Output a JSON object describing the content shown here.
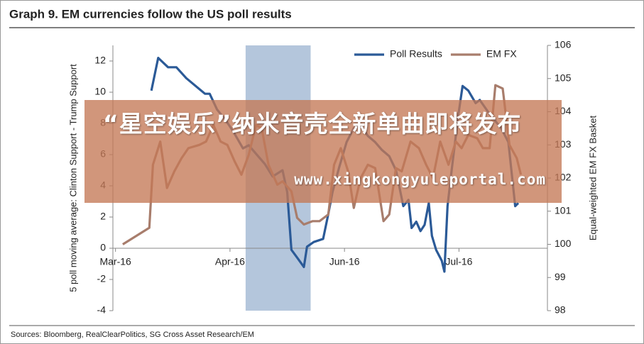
{
  "chart_data": {
    "type": "line",
    "title": "Graph 9. EM currencies follow the US poll results",
    "ylabel": "5 poll moving average: Clinton Support - Trump Support",
    "y2label": "Equal-weighted EM FX Basket",
    "source": "Sources: Bloomberg, RealClearPolitics,  SG Cross Asset Research/EM",
    "xlim": [
      -0.5,
      83
    ],
    "xticks": [
      {
        "value": 0,
        "label": "Mar-16"
      },
      {
        "value": 22,
        "label": "Apr-16"
      },
      {
        "value": 44,
        "label": "Jun-16"
      },
      {
        "value": 66,
        "label": "Jul-16"
      }
    ],
    "ylim": [
      -4,
      13
    ],
    "yticks": [
      -4,
      -2,
      0,
      2,
      4,
      6,
      8,
      10,
      12
    ],
    "y2lim": [
      98,
      106
    ],
    "y2ticks": [
      98,
      99,
      100,
      101,
      102,
      103,
      104,
      105,
      106
    ],
    "shaded_range": [
      25,
      37.5
    ],
    "shade_color": "#b4c6dc",
    "legend": "top-right",
    "series": [
      {
        "name": "Poll Results",
        "color": "#2b5a97",
        "axis": "y",
        "x": [
          6.9,
          8.2,
          10.1,
          11.7,
          13.6,
          17.2,
          18.1,
          19.5,
          21.2,
          22.6,
          24.5,
          25.6,
          27.4,
          28.7,
          30.2,
          32.1,
          33.0,
          33.8,
          34.9,
          36.2,
          36.8,
          38.1,
          39.9,
          40.9,
          41.7,
          43.0,
          44.4,
          45.8,
          47.1,
          48.5,
          49.9,
          51.2,
          52.6,
          53.9,
          55.3,
          56.3,
          56.9,
          57.8,
          58.6,
          59.4,
          60.2,
          60.8,
          61.6,
          62.7,
          63.2,
          63.8,
          64.6,
          65.9,
          66.7,
          67.8,
          69.2,
          70.0,
          71.9,
          74.1,
          75.5,
          76.8,
          77.4
        ],
        "values": [
          10.1,
          12.2,
          11.6,
          11.6,
          10.9,
          9.9,
          9.9,
          8.9,
          8.2,
          7.5,
          6.4,
          6.6,
          5.9,
          5.4,
          4.6,
          5.0,
          3.6,
          -0.1,
          -0.6,
          -1.2,
          0.1,
          0.4,
          0.6,
          2.2,
          3.6,
          5.2,
          6.8,
          7.7,
          7.9,
          7.2,
          6.8,
          6.3,
          5.9,
          5.0,
          2.7,
          3.1,
          1.3,
          1.7,
          1.1,
          1.5,
          2.9,
          0.8,
          -0.1,
          -0.8,
          -1.5,
          2.7,
          5.0,
          8.6,
          10.4,
          10.1,
          9.3,
          9.5,
          8.6,
          7.7,
          6.8,
          2.7,
          2.9
        ]
      },
      {
        "name": "EM FX",
        "color": "#a87d6c",
        "axis": "y2",
        "x": [
          1.4,
          6.5,
          7.2,
          8.6,
          9.9,
          11.3,
          12.7,
          14.0,
          16.1,
          17.4,
          18.8,
          20.2,
          21.5,
          22.9,
          24.2,
          25.6,
          27.0,
          28.1,
          29.4,
          31.1,
          32.1,
          33.8,
          34.9,
          36.2,
          37.9,
          39.2,
          40.9,
          42.0,
          43.3,
          44.7,
          45.8,
          47.1,
          48.5,
          49.9,
          51.5,
          52.6,
          53.9,
          55.0,
          56.7,
          58.3,
          59.7,
          61.0,
          62.4,
          64.0,
          65.4,
          66.5,
          67.8,
          69.5,
          70.6,
          71.9,
          73.0,
          74.4,
          75.7,
          77.1,
          77.9
        ],
        "values": [
          100.0,
          100.5,
          102.4,
          103.1,
          101.7,
          102.2,
          102.6,
          102.9,
          103.0,
          103.1,
          103.6,
          103.1,
          103.0,
          102.5,
          102.1,
          102.7,
          103.6,
          103.5,
          102.4,
          101.8,
          101.9,
          101.6,
          100.8,
          100.6,
          100.7,
          100.7,
          100.9,
          102.4,
          102.9,
          102.2,
          101.1,
          102.0,
          102.4,
          102.3,
          100.7,
          100.9,
          102.3,
          102.2,
          103.1,
          102.9,
          102.4,
          102.0,
          103.1,
          102.4,
          103.1,
          102.9,
          103.3,
          103.2,
          102.9,
          102.9,
          104.8,
          104.7,
          103.0,
          102.6,
          102.1
        ]
      }
    ]
  },
  "overlay": {
    "headline": "“星空娱乐”纳米音壳全新单曲即将发布",
    "url": "www.xingkongyuleportal.com"
  }
}
